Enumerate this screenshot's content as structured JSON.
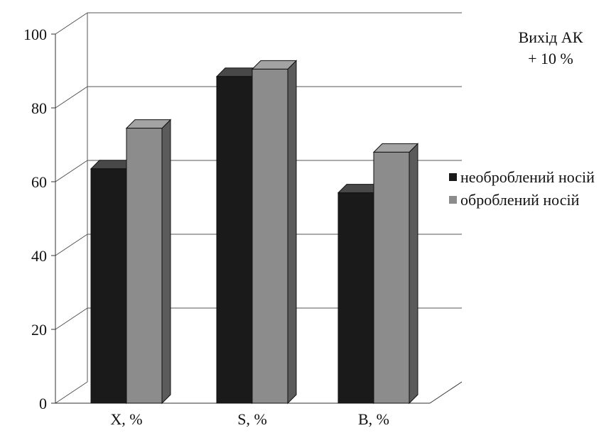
{
  "chart_data": {
    "type": "bar",
    "categories": [
      "X, %",
      "S, %",
      "B, %"
    ],
    "series": [
      {
        "name": "необроблений носій",
        "values": [
          63.5,
          88.5,
          57
        ],
        "color": "#1a1a1a"
      },
      {
        "name": "оброблений носій",
        "values": [
          74.5,
          90.5,
          68
        ],
        "color": "#8c8c8c"
      }
    ],
    "ylim": [
      0,
      100
    ],
    "yticks": [
      0,
      20,
      40,
      60,
      80,
      100
    ],
    "annotation": "Вихід АК\n+ 10 %",
    "grid": true,
    "legend_position": "right",
    "style": "3d"
  }
}
